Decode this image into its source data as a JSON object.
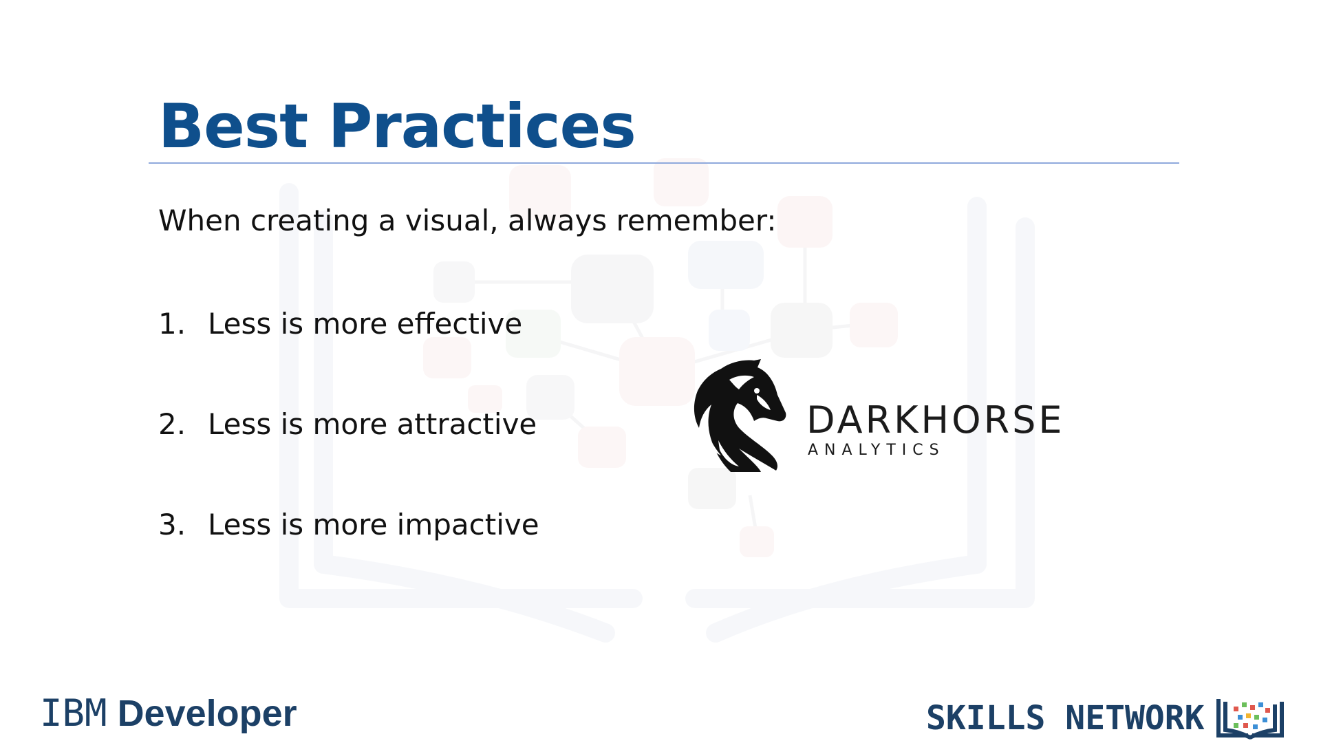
{
  "slide": {
    "title": "Best Practices",
    "intro": "When creating a visual, always remember:",
    "points": [
      {
        "num": "1.",
        "text": "Less is more effective"
      },
      {
        "num": "2.",
        "text": "Less is more attractive"
      },
      {
        "num": "3.",
        "text": "Less is more impactive"
      }
    ]
  },
  "darkhorse_logo": {
    "name": "DARKHORSE",
    "subtitle": "ANALYTICS",
    "icon": "horse-head-icon"
  },
  "footer": {
    "left_logo": {
      "brand": "IBM",
      "word": "Developer"
    },
    "right_logo": {
      "text": "SKILLS NETWORK",
      "icon": "open-book-network-icon"
    }
  },
  "colors": {
    "title": "#0f4f8c",
    "rule": "#8fa9dc",
    "body_text": "#111111",
    "footer_text": "#1c4066"
  }
}
